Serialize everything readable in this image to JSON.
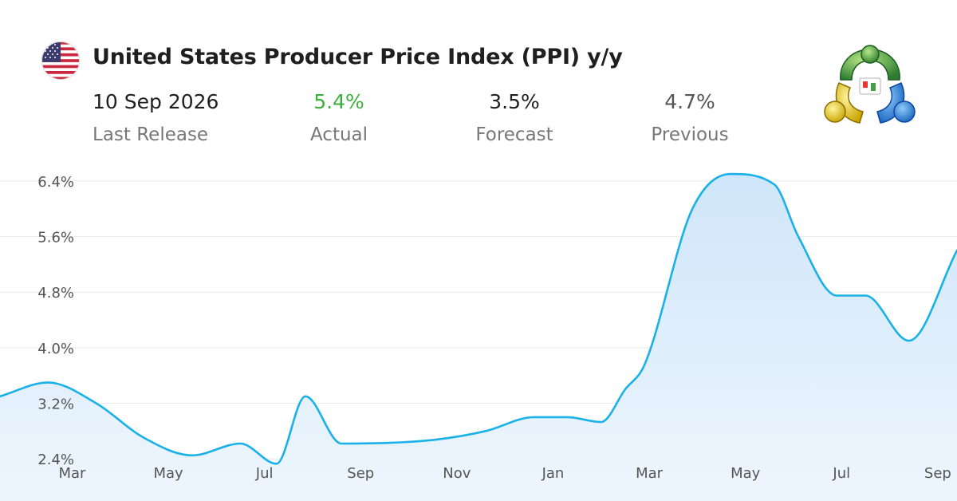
{
  "header": {
    "title": "United States Producer Price Index (PPI) y/y",
    "flag_icon": "us-flag-icon",
    "logo_icon": "metatrader-logo-icon"
  },
  "stats": [
    {
      "value": "10 Sep 2026",
      "label": "Last Release",
      "color": "#1f1f1f"
    },
    {
      "value": "5.4%",
      "label": "Actual",
      "color": "#3cae3c"
    },
    {
      "value": "3.5%",
      "label": "Forecast",
      "color": "#1f1f1f"
    },
    {
      "value": "4.7%",
      "label": "Previous",
      "color": "#555555"
    }
  ],
  "colors": {
    "line": "#1ab0e8",
    "area_top": "#cfe6fa",
    "area_bottom": "#eef6fd",
    "grid": "#ebebeb",
    "tick_text": "#555555"
  },
  "chart_data": {
    "type": "area",
    "title": "United States Producer Price Index (PPI) y/y",
    "xlabel": "",
    "ylabel": "",
    "grid": true,
    "x_unit": "month (1 = Mar 2025)",
    "x_ticks": [
      {
        "x": 1,
        "label": "Mar"
      },
      {
        "x": 3,
        "label": "May"
      },
      {
        "x": 5,
        "label": "Jul"
      },
      {
        "x": 7,
        "label": "Sep"
      },
      {
        "x": 9,
        "label": "Nov"
      },
      {
        "x": 11,
        "label": "Jan"
      },
      {
        "x": 13,
        "label": "Mar"
      },
      {
        "x": 15,
        "label": "May"
      },
      {
        "x": 17,
        "label": "Jul"
      },
      {
        "x": 19,
        "label": "Sep"
      }
    ],
    "y_ticks": [
      {
        "y": 2.4,
        "label": "2.4%"
      },
      {
        "y": 3.2,
        "label": "3.2%"
      },
      {
        "y": 4.0,
        "label": "4.0%"
      },
      {
        "y": 4.8,
        "label": "4.8%"
      },
      {
        "y": 5.6,
        "label": "5.6%"
      },
      {
        "y": 6.4,
        "label": "6.4%"
      }
    ],
    "xlim": [
      -0.5,
      19.4
    ],
    "ylim": [
      2.0,
      6.8
    ],
    "series": [
      {
        "x": [
          -0.5,
          0.5,
          1.5,
          2.5,
          3.5,
          4.5,
          5.25,
          5.85,
          6.6,
          7.6,
          8.6,
          9.6,
          10.6,
          11.3,
          12.0,
          12.5,
          12.9,
          13.9,
          14.7,
          15.6,
          16.1,
          16.9,
          17.5,
          18.4,
          19.4
        ],
        "y": [
          3.3,
          3.5,
          3.2,
          2.7,
          2.45,
          2.62,
          2.33,
          3.3,
          2.62,
          2.63,
          2.68,
          2.8,
          3.0,
          3.0,
          2.93,
          3.4,
          3.75,
          6.0,
          6.5,
          6.35,
          5.6,
          4.75,
          4.75,
          4.1,
          5.4
        ]
      }
    ]
  }
}
